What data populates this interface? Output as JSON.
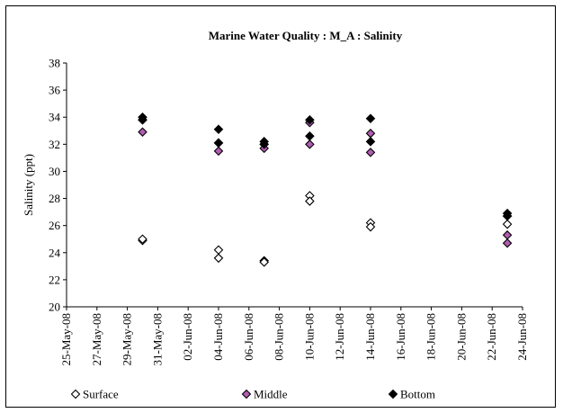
{
  "chart_data": {
    "type": "scatter",
    "title": "Marine Water Quality : M_A : Salinity",
    "xlabel": "",
    "ylabel": "Salinity (ppt)",
    "ylim": [
      20,
      38
    ],
    "y_ticks": [
      "20",
      "22",
      "24",
      "26",
      "28",
      "30",
      "32",
      "34",
      "36",
      "38"
    ],
    "x_range": [
      "25-May-08",
      "24-Jun-08"
    ],
    "x_ticks": [
      "25-May-08",
      "27-May-08",
      "29-May-08",
      "31-May-08",
      "02-Jun-08",
      "04-Jun-08",
      "06-Jun-08",
      "08-Jun-08",
      "10-Jun-08",
      "12-Jun-08",
      "14-Jun-08",
      "16-Jun-08",
      "18-Jun-08",
      "20-Jun-08",
      "22-Jun-08",
      "24-Jun-08"
    ],
    "legend_position": "bottom",
    "grid": false,
    "series": [
      {
        "name": "Surface",
        "marker": "open-diamond",
        "color": "#000000",
        "fill": "#ffffff",
        "points": [
          {
            "x": "30-May-08",
            "y": 24.9
          },
          {
            "x": "30-May-08",
            "y": 25.0
          },
          {
            "x": "04-Jun-08",
            "y": 24.2
          },
          {
            "x": "04-Jun-08",
            "y": 23.6
          },
          {
            "x": "07-Jun-08",
            "y": 23.4
          },
          {
            "x": "07-Jun-08",
            "y": 23.3
          },
          {
            "x": "10-Jun-08",
            "y": 28.2
          },
          {
            "x": "10-Jun-08",
            "y": 27.8
          },
          {
            "x": "14-Jun-08",
            "y": 26.2
          },
          {
            "x": "14-Jun-08",
            "y": 25.9
          },
          {
            "x": "23-Jun-08",
            "y": 26.7
          },
          {
            "x": "23-Jun-08",
            "y": 26.1
          }
        ]
      },
      {
        "name": "Middle",
        "marker": "diamond",
        "color": "#000000",
        "fill": "#b05cb0",
        "points": [
          {
            "x": "30-May-08",
            "y": 33.8
          },
          {
            "x": "30-May-08",
            "y": 32.9
          },
          {
            "x": "04-Jun-08",
            "y": 32.1
          },
          {
            "x": "04-Jun-08",
            "y": 31.5
          },
          {
            "x": "07-Jun-08",
            "y": 32.0
          },
          {
            "x": "07-Jun-08",
            "y": 31.7
          },
          {
            "x": "10-Jun-08",
            "y": 33.6
          },
          {
            "x": "10-Jun-08",
            "y": 32.0
          },
          {
            "x": "14-Jun-08",
            "y": 32.8
          },
          {
            "x": "14-Jun-08",
            "y": 31.4
          },
          {
            "x": "23-Jun-08",
            "y": 25.3
          },
          {
            "x": "23-Jun-08",
            "y": 24.7
          }
        ]
      },
      {
        "name": "Bottom",
        "marker": "diamond",
        "color": "#000000",
        "fill": "#000000",
        "points": [
          {
            "x": "30-May-08",
            "y": 34.0
          },
          {
            "x": "30-May-08",
            "y": 33.8
          },
          {
            "x": "04-Jun-08",
            "y": 33.1
          },
          {
            "x": "04-Jun-08",
            "y": 32.1
          },
          {
            "x": "07-Jun-08",
            "y": 32.2
          },
          {
            "x": "07-Jun-08",
            "y": 32.0
          },
          {
            "x": "10-Jun-08",
            "y": 33.8
          },
          {
            "x": "10-Jun-08",
            "y": 32.6
          },
          {
            "x": "14-Jun-08",
            "y": 33.9
          },
          {
            "x": "14-Jun-08",
            "y": 32.2
          },
          {
            "x": "23-Jun-08",
            "y": 26.9
          },
          {
            "x": "23-Jun-08",
            "y": 26.7
          }
        ]
      }
    ]
  }
}
